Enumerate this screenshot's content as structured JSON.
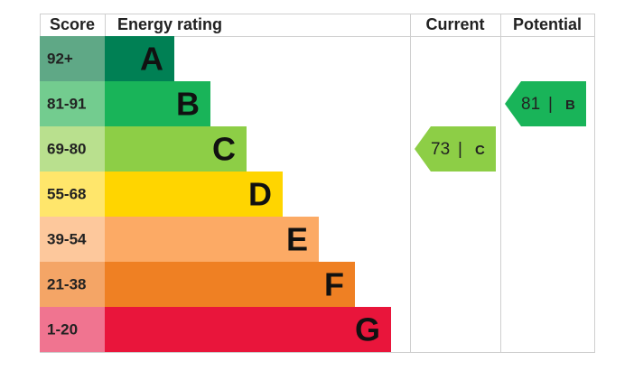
{
  "header": {
    "score": "Score",
    "rating": "Energy rating",
    "current": "Current",
    "potential": "Potential"
  },
  "bands": [
    {
      "score": "92+",
      "letter": "A",
      "color": "#008054",
      "score_color": "#5fa886"
    },
    {
      "score": "81-91",
      "letter": "B",
      "color": "#19b459",
      "score_color": "#73cc8f"
    },
    {
      "score": "69-80",
      "letter": "C",
      "color": "#8dce46",
      "score_color": "#b9e08e"
    },
    {
      "score": "55-68",
      "letter": "D",
      "color": "#ffd500",
      "score_color": "#ffe66b"
    },
    {
      "score": "39-54",
      "letter": "E",
      "color": "#fcaa65",
      "score_color": "#fdc89c"
    },
    {
      "score": "21-38",
      "letter": "F",
      "color": "#ef8023",
      "score_color": "#f4a566"
    },
    {
      "score": "1-20",
      "letter": "G",
      "color": "#e9153b",
      "score_color": "#f07490"
    }
  ],
  "current": {
    "score": 73,
    "separator": "|",
    "rating": "C",
    "band": 2
  },
  "potential": {
    "score": 81,
    "separator": "|",
    "rating": "B",
    "band": 1
  }
}
